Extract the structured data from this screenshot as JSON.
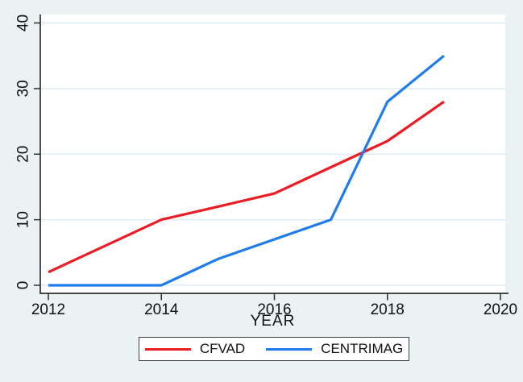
{
  "chart_data": {
    "type": "line",
    "title": "",
    "xlabel": "YEAR",
    "ylabel": "",
    "x": [
      2012,
      2013,
      2014,
      2015,
      2016,
      2017,
      2018,
      2019
    ],
    "series": [
      {
        "name": "CFVAD",
        "color": "#ed1c24",
        "values": [
          2,
          6,
          10,
          12,
          14,
          18,
          22,
          28
        ]
      },
      {
        "name": "CENTRIMAG",
        "color": "#1f7ced",
        "values": [
          0,
          0,
          0,
          4,
          7,
          10,
          28,
          35
        ]
      }
    ],
    "xlim": [
      2012,
      2020
    ],
    "ylim": [
      0,
      40
    ],
    "x_ticks": [
      2012,
      2014,
      2016,
      2018,
      2020
    ],
    "y_ticks": [
      0,
      10,
      20,
      30,
      40
    ],
    "x_tick_labels": [
      "2012",
      "2014",
      "2016",
      "2018",
      "2020"
    ],
    "y_tick_labels": [
      "0",
      "10",
      "20",
      "30",
      "40"
    ],
    "grid": "horizontal",
    "legend_position": "bottom"
  },
  "legend": {
    "items": [
      {
        "label": "CFVAD",
        "color": "#ed1c24"
      },
      {
        "label": "CENTRIMAG",
        "color": "#1f7ced"
      }
    ]
  },
  "colors": {
    "background": "#eaf2f3",
    "plot_background": "#ffffff",
    "gridline": "#dfecf1",
    "axis": "#2f2f2f",
    "text": "#111111",
    "legend_border": "#3f3f3f"
  }
}
